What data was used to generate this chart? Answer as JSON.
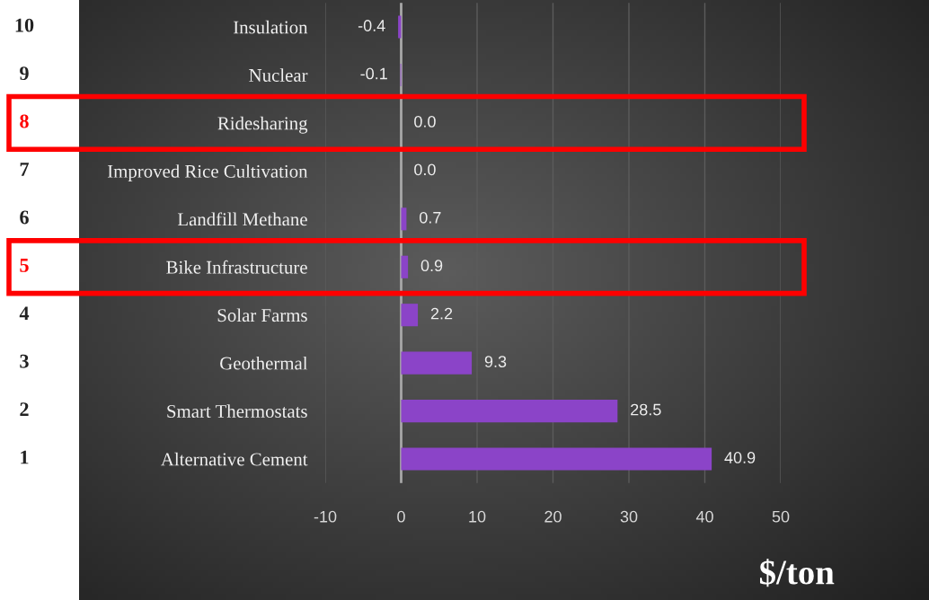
{
  "chart_data": {
    "type": "bar",
    "orientation": "horizontal",
    "xlabel": "$/ton",
    "categories": [
      "Insulation",
      "Nuclear",
      "Ridesharing",
      "Improved Rice Cultivation",
      "Landfill Methane",
      "Bike Infrastructure",
      "Solar Farms",
      "Geothermal",
      "Smart Thermostats",
      "Alternative Cement"
    ],
    "values": [
      -0.4,
      -0.1,
      0.0,
      0.0,
      0.7,
      0.9,
      2.2,
      9.3,
      28.5,
      40.9
    ],
    "value_labels": [
      "-0.4",
      "-0.1",
      "0.0",
      "0.0",
      "0.7",
      "0.9",
      "2.2",
      "9.3",
      "28.5",
      "40.9"
    ],
    "color": "#8b44c8",
    "xlim": [
      -10,
      50
    ],
    "xticks": [
      -10,
      0,
      10,
      20,
      30,
      40,
      50
    ],
    "grid": "x",
    "ref_lines": [
      {
        "axis": "x",
        "value": 0,
        "color": "#a8a8a8"
      }
    ],
    "annotations": [
      "10",
      "9",
      "8",
      "7",
      "6",
      "5",
      "4",
      "3",
      "2",
      "1"
    ]
  }
}
